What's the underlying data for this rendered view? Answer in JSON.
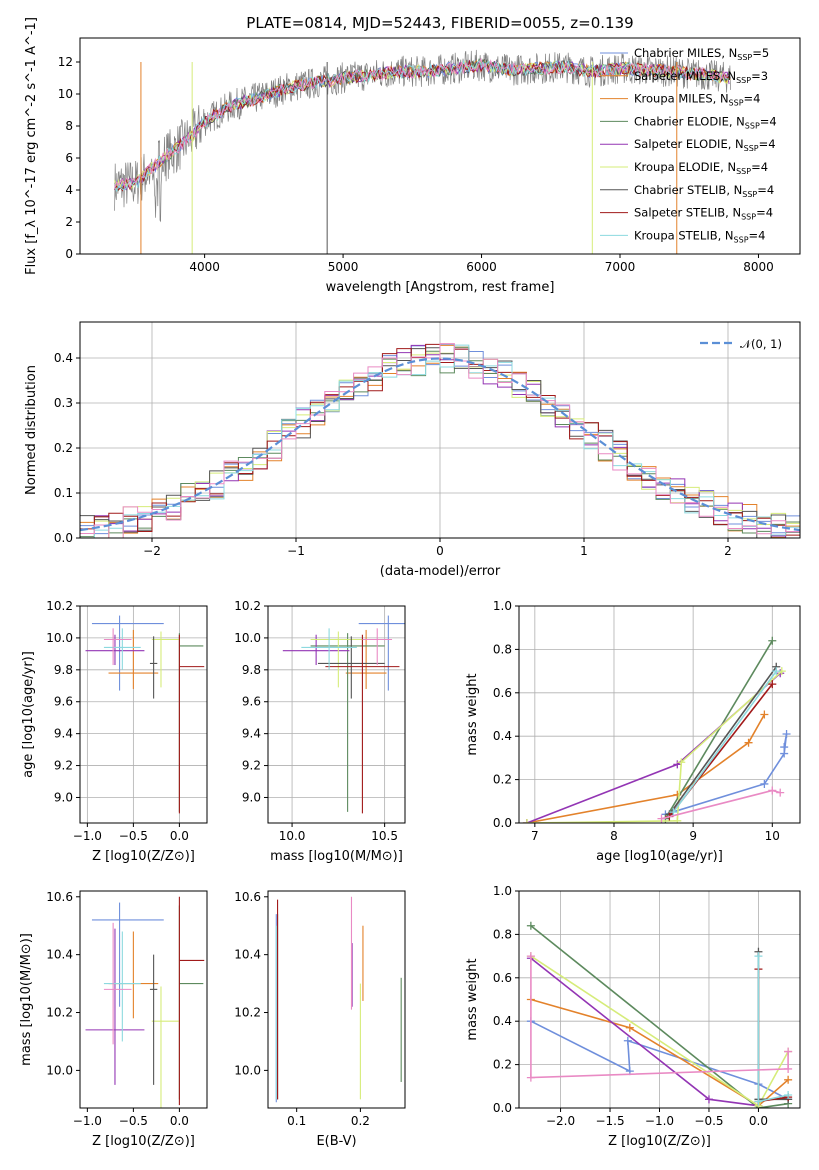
{
  "figure_title": "PLATE=0814, MJD=52443, FIBERID=0055, z=0.139",
  "colors": [
    "#6f8fdc",
    "#e3822b",
    "#5d8a5e",
    "#9335b4",
    "#d6ec7a",
    "#555555",
    "#a11a1a",
    "#8cd9df",
    "#e98ac4"
  ],
  "legend": {
    "series": [
      {
        "name": "Chabrier MILES, N",
        "sub": "SSP",
        "suffix": "=5",
        "color": "#6f8fdc"
      },
      {
        "name": "Salpeter MILES, N",
        "sub": "SSP",
        "suffix": "=3",
        "color": "#e3822b"
      },
      {
        "name": "Kroupa MILES, N",
        "sub": "SSP",
        "suffix": "=4",
        "color": "#e3822b"
      },
      {
        "name": "Chabrier ELODIE, N",
        "sub": "SSP",
        "suffix": "=4",
        "color": "#5d8a5e"
      },
      {
        "name": "Salpeter ELODIE, N",
        "sub": "SSP",
        "suffix": "=4",
        "color": "#9335b4"
      },
      {
        "name": "Kroupa ELODIE, N",
        "sub": "SSP",
        "suffix": "=4",
        "color": "#d6ec7a"
      },
      {
        "name": "Chabrier STELIB, N",
        "sub": "SSP",
        "suffix": "=4",
        "color": "#555555"
      },
      {
        "name": "Salpeter STELIB, N",
        "sub": "SSP",
        "suffix": "=4",
        "color": "#a11a1a"
      },
      {
        "name": "Kroupa STELIB, N",
        "sub": "SSP",
        "suffix": "=4",
        "color": "#8cd9df"
      }
    ],
    "normal_label": "𝒩(0, 1)"
  },
  "chart_data": [
    {
      "id": "spectrum",
      "type": "line",
      "xlabel": "wavelength [Angstrom, rest frame]",
      "ylabel": "Flux [f_λ 10^-17 erg cm^-2 s^-1 A^-1]",
      "xlim": [
        3100,
        8300
      ],
      "ylim": [
        0,
        13.5
      ],
      "xticks": [
        4000,
        5000,
        6000,
        7000,
        8000
      ],
      "yticks": [
        0,
        2,
        4,
        6,
        8,
        10,
        12
      ],
      "continuum": {
        "x": [
          3350,
          3500,
          3600,
          3700,
          3800,
          3900,
          4000,
          4200,
          4400,
          4600,
          4800,
          5000,
          5200,
          5400,
          5600,
          5800,
          6000,
          6200,
          6400,
          6600,
          6800,
          7000,
          7200,
          7400,
          7600,
          7800
        ],
        "y": [
          4.3,
          4.4,
          5.2,
          6.0,
          6.6,
          7.3,
          8.3,
          9.3,
          9.8,
          10.4,
          10.7,
          11.0,
          11.2,
          11.4,
          11.4,
          11.6,
          11.8,
          11.5,
          11.6,
          11.7,
          11.4,
          11.6,
          11.5,
          11.4,
          11.2,
          11.0
        ]
      },
      "grid": false
    },
    {
      "id": "residuals",
      "type": "histogram",
      "xlabel": "(data-model)/error",
      "ylabel": "Normed distribution",
      "xlim": [
        -2.5,
        2.5
      ],
      "ylim": [
        0,
        0.48
      ],
      "xticks": [
        -2,
        -1,
        0,
        1,
        2
      ],
      "yticks": [
        0.0,
        0.1,
        0.2,
        0.3,
        0.4
      ],
      "reference": "N(0,1)",
      "bins": 50,
      "grid": true
    },
    {
      "id": "age_vs_Z",
      "type": "errorbar",
      "xlabel": "Z [log10(Z/Z⊙)]",
      "ylabel": "age  [log10(age/yr)]",
      "xlim": [
        -1.08,
        0.3
      ],
      "ylim": [
        8.84,
        10.2
      ],
      "xticks": [
        -1.0,
        -0.5,
        0.0
      ],
      "yticks": [
        9.0,
        9.2,
        9.4,
        9.6,
        9.8,
        10.0,
        10.2
      ],
      "points": [
        {
          "x": -0.65,
          "xerr": [
            0.3,
            0.48
          ],
          "y": 10.09,
          "yerr": [
            0.42,
            0.05
          ]
        },
        {
          "x": -0.5,
          "xerr": [
            0.27,
            0.27
          ],
          "y": 9.78,
          "yerr": [
            0.1,
            0.27
          ]
        },
        {
          "x": 0.0,
          "xerr": [
            0.0,
            0.26
          ],
          "y": 9.95,
          "yerr": [
            1.04,
            0.08
          ]
        },
        {
          "x": -0.7,
          "xerr": [
            0.32,
            0.32
          ],
          "y": 9.92,
          "yerr": [
            0.09,
            0.1
          ]
        },
        {
          "x": -0.2,
          "xerr": [
            0.1,
            0.2
          ],
          "y": 9.99,
          "yerr": [
            0.3,
            0.05
          ]
        },
        {
          "x": -0.28,
          "xerr": [
            0.04,
            0.04
          ],
          "y": 9.84,
          "yerr": [
            0.22,
            0.17
          ]
        },
        {
          "x": 0.0,
          "xerr": [
            0.0,
            0.27
          ],
          "y": 9.82,
          "yerr": [
            0.92,
            0.2
          ]
        },
        {
          "x": -0.62,
          "xerr": [
            0.2,
            0.2
          ],
          "y": 9.94,
          "yerr": [
            0.14,
            0.12
          ]
        },
        {
          "x": -0.72,
          "xerr": [
            0.1,
            0.2
          ],
          "y": 9.99,
          "yerr": [
            0.16,
            0.07
          ]
        }
      ],
      "grid": true
    },
    {
      "id": "age_vs_mass",
      "type": "errorbar",
      "xlabel": "mass [log10(M/M⊙)]",
      "ylabel": "",
      "xlim": [
        9.87,
        10.61
      ],
      "ylim": [
        8.84,
        10.2
      ],
      "xticks": [
        10.0,
        10.5
      ],
      "yticks": [
        9.0,
        9.2,
        9.4,
        9.6,
        9.8,
        10.0,
        10.2
      ],
      "points": [
        {
          "x": 10.52,
          "xerr": [
            0.16,
            0.1
          ],
          "y": 10.09,
          "yerr": [
            0.42,
            0.05
          ]
        },
        {
          "x": 10.4,
          "xerr": [
            0.11,
            0.11
          ],
          "y": 9.78,
          "yerr": [
            0.1,
            0.27
          ]
        },
        {
          "x": 10.3,
          "xerr": [
            0.2,
            0.2
          ],
          "y": 9.95,
          "yerr": [
            1.04,
            0.08
          ]
        },
        {
          "x": 10.13,
          "xerr": [
            0.18,
            0.18
          ],
          "y": 9.92,
          "yerr": [
            0.09,
            0.1
          ]
        },
        {
          "x": 10.25,
          "xerr": [
            0.15,
            0.15
          ],
          "y": 9.99,
          "yerr": [
            0.3,
            0.05
          ]
        },
        {
          "x": 10.32,
          "xerr": [
            0.18,
            0.18
          ],
          "y": 9.84,
          "yerr": [
            0.22,
            0.17
          ]
        },
        {
          "x": 10.38,
          "xerr": [
            0.2,
            0.2
          ],
          "y": 9.82,
          "yerr": [
            0.92,
            0.2
          ]
        },
        {
          "x": 10.2,
          "xerr": [
            0.15,
            0.15
          ],
          "y": 9.94,
          "yerr": [
            0.14,
            0.12
          ]
        },
        {
          "x": 10.46,
          "xerr": [
            0.08,
            0.08
          ],
          "y": 9.99,
          "yerr": [
            0.16,
            0.07
          ]
        }
      ],
      "grid": true
    },
    {
      "id": "weight_vs_age",
      "type": "line",
      "xlabel": "age  [log10(age/yr)]",
      "ylabel": "mass weight",
      "xlim": [
        6.8,
        10.35
      ],
      "ylim": [
        0,
        1.0
      ],
      "xticks": [
        7,
        8,
        9,
        10
      ],
      "yticks": [
        0.0,
        0.2,
        0.4,
        0.6,
        0.8,
        1.0
      ],
      "series": [
        {
          "x": [
            8.65,
            9.9,
            10.15,
            10.18,
            10.15
          ],
          "y": [
            0.04,
            0.18,
            0.32,
            0.41,
            0.35
          ]
        },
        {
          "x": 6.9,
          "xs": [
            6.9,
            8.8,
            9.7,
            9.9
          ],
          "ys": [
            0.0,
            0.13,
            0.37,
            0.5
          ]
        },
        {
          "xs": [
            8.65,
            10.0
          ],
          "ys": [
            0.02,
            0.84
          ]
        },
        {
          "xs": [
            6.9,
            8.8,
            10.1
          ],
          "ys": [
            0.0,
            0.27,
            0.69
          ]
        },
        {
          "xs": [
            6.9,
            8.8,
            8.85,
            10.12
          ],
          "ys": [
            0.0,
            0.01,
            0.28,
            0.7
          ]
        },
        {
          "xs": [
            8.7,
            10.05
          ],
          "ys": [
            0.04,
            0.72
          ]
        },
        {
          "xs": [
            8.7,
            10.0
          ],
          "ys": [
            0.03,
            0.64
          ]
        },
        {
          "xs": [
            8.75,
            10.05
          ],
          "ys": [
            0.05,
            0.7
          ]
        },
        {
          "xs": [
            8.6,
            10.0,
            10.1
          ],
          "ys": [
            0.02,
            0.15,
            0.14
          ]
        }
      ],
      "grid": true
    },
    {
      "id": "mass_vs_Z",
      "type": "errorbar",
      "xlabel": "Z [log10(Z/Z⊙)]",
      "ylabel": "mass [log10(M/M⊙)]",
      "xlim": [
        -1.08,
        0.3
      ],
      "ylim": [
        9.87,
        10.62
      ],
      "xticks": [
        -1.0,
        -0.5,
        0.0
      ],
      "yticks": [
        10.0,
        10.2,
        10.4,
        10.6
      ],
      "points": [
        {
          "x": -0.65,
          "xerr": [
            0.3,
            0.48
          ],
          "y": 10.52,
          "yerr": [
            0.3,
            0.06
          ]
        },
        {
          "x": -0.5,
          "xerr": [
            0.27,
            0.27
          ],
          "y": 10.3,
          "yerr": [
            0.12,
            0.18
          ]
        },
        {
          "x": 0.0,
          "xerr": [
            0.0,
            0.26
          ],
          "y": 10.3,
          "yerr": [
            0.4,
            0.27
          ]
        },
        {
          "x": -0.7,
          "xerr": [
            0.32,
            0.32
          ],
          "y": 10.14,
          "yerr": [
            0.19,
            0.35
          ]
        },
        {
          "x": -0.2,
          "xerr": [
            0.1,
            0.2
          ],
          "y": 10.17,
          "yerr": [
            0.3,
            0.12
          ]
        },
        {
          "x": -0.28,
          "xerr": [
            0.04,
            0.04
          ],
          "y": 10.28,
          "yerr": [
            0.33,
            0.12
          ]
        },
        {
          "x": 0.0,
          "xerr": [
            0.0,
            0.27
          ],
          "y": 10.38,
          "yerr": [
            0.5,
            0.22
          ]
        },
        {
          "x": -0.62,
          "xerr": [
            0.2,
            0.2
          ],
          "y": 10.3,
          "yerr": [
            0.2,
            0.18
          ]
        },
        {
          "x": -0.72,
          "xerr": [
            0.1,
            0.2
          ],
          "y": 10.28,
          "yerr": [
            0.19,
            0.23
          ]
        }
      ],
      "grid": false
    },
    {
      "id": "mass_vs_EBV",
      "type": "errorbar",
      "xlabel": "E(B-V)",
      "ylabel": "",
      "xlim": [
        0.055,
        0.27
      ],
      "ylim": [
        9.87,
        10.62
      ],
      "xticks": [
        0.1,
        0.2
      ],
      "yticks": [
        10.0,
        10.2,
        10.4,
        10.6
      ],
      "points": [
        {
          "x": 0.068,
          "y": 10.52,
          "yerr": [
            0.63,
            0.02
          ]
        },
        {
          "x": 0.204,
          "y": 10.37,
          "yerr": [
            0.13,
            0.13
          ]
        },
        {
          "x": 0.264,
          "y": 10.14,
          "yerr": [
            0.18,
            0.18
          ]
        },
        {
          "x": 0.187,
          "y": 10.38,
          "yerr": [
            0.16,
            0.06
          ]
        },
        {
          "x": 0.2,
          "y": 10.2,
          "yerr": [
            0.3,
            0.1
          ]
        },
        {
          "x": 0.07,
          "y": 10.3,
          "yerr": [
            0.4,
            0.24
          ]
        },
        {
          "x": 0.07,
          "y": 10.35,
          "yerr": [
            0.45,
            0.24
          ]
        },
        {
          "x": 0.068,
          "y": 10.3,
          "yerr": [
            0.4,
            0.2
          ]
        },
        {
          "x": 0.186,
          "y": 10.4,
          "yerr": [
            0.19,
            0.2
          ]
        }
      ],
      "grid": false
    },
    {
      "id": "weight_vs_Z",
      "type": "line",
      "xlabel": "Z [log10(Z/Z⊙)]",
      "ylabel": "mass weight",
      "xlim": [
        -2.42,
        0.42
      ],
      "ylim": [
        0,
        1.0
      ],
      "xticks": [
        -2.0,
        -1.5,
        -1.0,
        -0.5,
        0.0
      ],
      "yticks": [
        0.0,
        0.2,
        0.4,
        0.6,
        0.8,
        1.0
      ],
      "series": [
        {
          "xs": [
            -2.3,
            -1.3,
            -1.32,
            0.0,
            0.3
          ],
          "ys": [
            0.4,
            0.17,
            0.31,
            0.11,
            0.04
          ]
        },
        {
          "xs": [
            -2.3,
            -1.3,
            0.0,
            0.3
          ],
          "ys": [
            0.5,
            0.37,
            0.01,
            0.13
          ]
        },
        {
          "xs": [
            -2.3,
            0.0,
            0.3
          ],
          "ys": [
            0.84,
            0.0,
            0.02
          ]
        },
        {
          "xs": [
            -2.3,
            -0.5,
            0.0
          ],
          "ys": [
            0.69,
            0.04,
            0.01
          ]
        },
        {
          "xs": [
            -2.3,
            0.0,
            0.3
          ],
          "ys": [
            0.7,
            0.01,
            0.26
          ]
        },
        {
          "xs": [
            0.0,
            0.0,
            0.3
          ],
          "ys": [
            0.72,
            0.04,
            0.04
          ]
        },
        {
          "xs": [
            0.0,
            0.0,
            0.3
          ],
          "ys": [
            0.64,
            0.03,
            0.05
          ]
        },
        {
          "xs": [
            0.0,
            0.0,
            0.3
          ],
          "ys": [
            0.7,
            0.03,
            0.06
          ]
        },
        {
          "xs": [
            -2.3,
            -2.3,
            0.3,
            0.3
          ],
          "ys": [
            0.7,
            0.14,
            0.18,
            0.26
          ]
        }
      ],
      "grid": true
    }
  ]
}
